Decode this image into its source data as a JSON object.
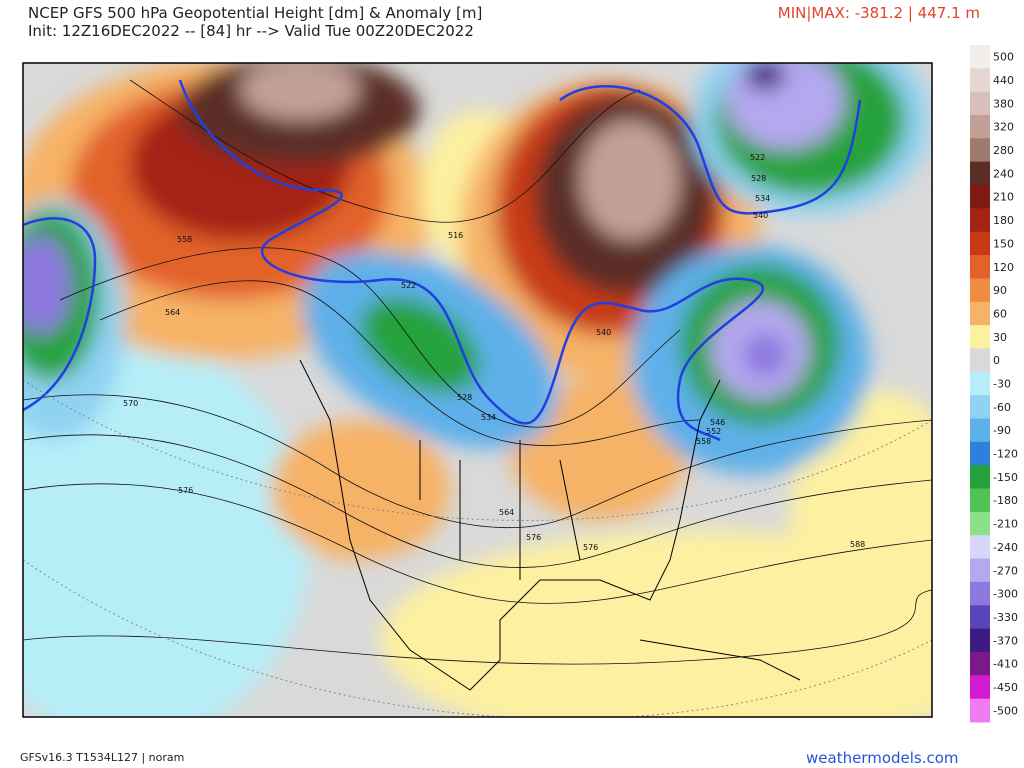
{
  "header": {
    "title": "NCEP GFS 500 hPa Geopotential Height [dm] & Anomaly [m]",
    "init": "Init: 12Z16DEC2022 -- [84] hr --> Valid Tue 00Z20DEC2022",
    "minmax": "MIN|MAX: -381.2 | 447.1 m"
  },
  "colorbar": {
    "labels": [
      500,
      440,
      380,
      320,
      280,
      240,
      210,
      180,
      150,
      120,
      90,
      60,
      30,
      0,
      -30,
      -60,
      -90,
      -120,
      -150,
      -180,
      -210,
      -240,
      -270,
      -300,
      -330,
      -370,
      -410,
      -450,
      -500
    ],
    "colors": [
      "#f2eeeb",
      "#e6d7d2",
      "#d7c0b9",
      "#c2a096",
      "#9c7a70",
      "#5a2e26",
      "#7e1a10",
      "#a42412",
      "#c83a16",
      "#e2622a",
      "#f08c42",
      "#f6b266",
      "#fdf0a0",
      "#d9d9d9",
      "#b6eef8",
      "#8fd2f2",
      "#5eb0ea",
      "#2f80da",
      "#25a23c",
      "#4fc453",
      "#8ce08a",
      "#d8d6f6",
      "#b4a8ee",
      "#8c78de",
      "#5a44bc",
      "#3c1a82",
      "#7a1a8a",
      "#d21ad2",
      "#f07af0"
    ]
  },
  "contours": {
    "a": "558",
    "b": "564",
    "c": "570",
    "d": "576",
    "e": "522",
    "f": "516",
    "g": "528",
    "h": "534",
    "i": "522",
    "j": "528",
    "k": "534",
    "l": "540",
    "m": "546",
    "n": "552",
    "o": "558",
    "p": "564",
    "q": "576",
    "r": "588",
    "s": "576",
    "t": "540"
  },
  "footer": {
    "model": "GFSv16.3 T1534L127 | noram",
    "site": "weathermodels.com"
  }
}
